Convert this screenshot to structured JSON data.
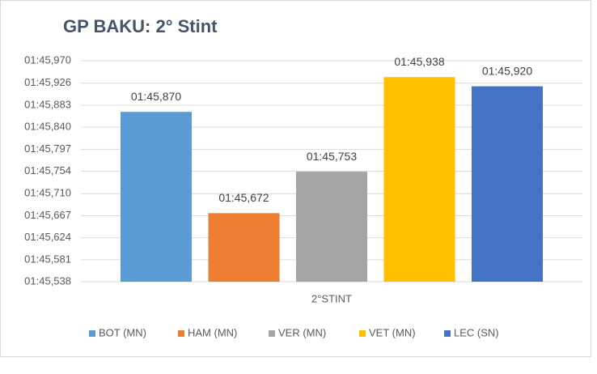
{
  "chart_data": {
    "type": "bar",
    "title": "GP BAKU: 2° Stint",
    "categories": [
      "2°STINT"
    ],
    "series": [
      {
        "name": "BOT (MN)",
        "color": "#5b9bd5",
        "values": [
          105.87
        ],
        "value_labels": [
          "01:45,870"
        ]
      },
      {
        "name": "HAM (MN)",
        "color": "#ed7d31",
        "values": [
          105.672
        ],
        "value_labels": [
          "01:45,672"
        ]
      },
      {
        "name": "VER (MN)",
        "color": "#a5a5a5",
        "values": [
          105.753
        ],
        "value_labels": [
          "01:45,753"
        ]
      },
      {
        "name": "VET (MN)",
        "color": "#ffc000",
        "values": [
          105.938
        ],
        "value_labels": [
          "01:45,938"
        ]
      },
      {
        "name": "LEC (SN)",
        "color": "#4472c4",
        "values": [
          105.92
        ],
        "value_labels": [
          "01:45,920"
        ]
      }
    ],
    "ylim": [
      105.538,
      105.97
    ],
    "yticks": [
      {
        "value": 105.538,
        "label": "01:45,538"
      },
      {
        "value": 105.581,
        "label": "01:45,581"
      },
      {
        "value": 105.624,
        "label": "01:45,624"
      },
      {
        "value": 105.667,
        "label": "01:45,667"
      },
      {
        "value": 105.71,
        "label": "01:45,710"
      },
      {
        "value": 105.754,
        "label": "01:45,754"
      },
      {
        "value": 105.797,
        "label": "01:45,797"
      },
      {
        "value": 105.84,
        "label": "01:45,840"
      },
      {
        "value": 105.883,
        "label": "01:45,883"
      },
      {
        "value": 105.926,
        "label": "01:45,926"
      },
      {
        "value": 105.97,
        "label": "01:45,970"
      }
    ],
    "grid": true,
    "legend": "bottom"
  }
}
